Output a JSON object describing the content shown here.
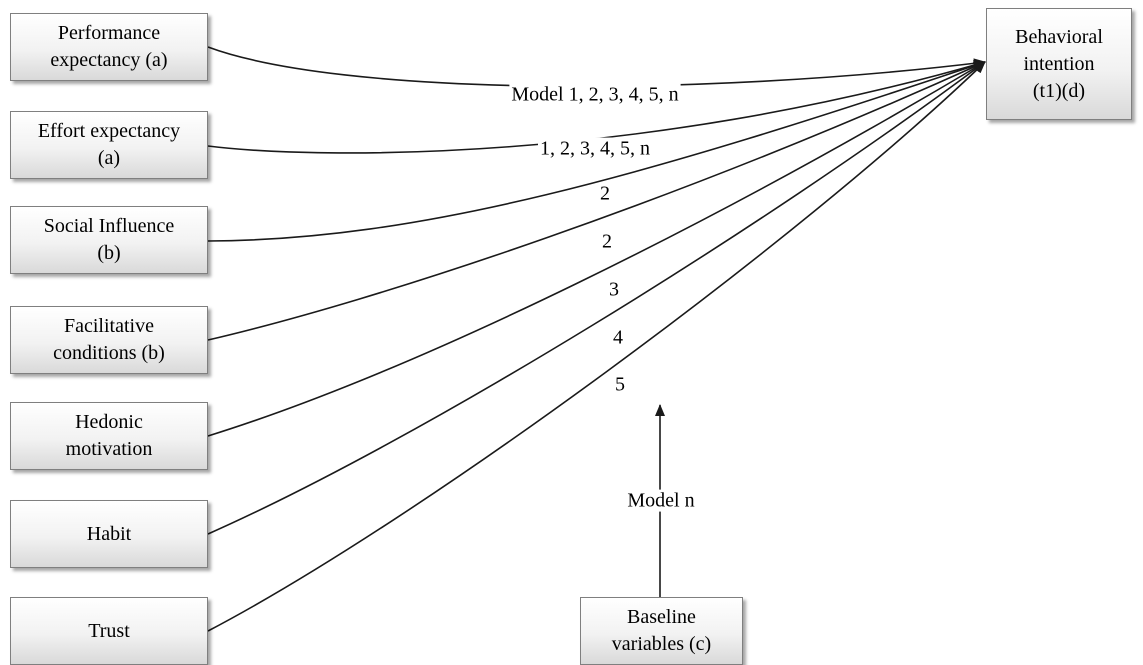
{
  "sources": [
    {
      "id": "pe",
      "label": "Performance\nexpectancy (a)"
    },
    {
      "id": "ee",
      "label": "Effort expectancy\n(a)"
    },
    {
      "id": "si",
      "label": "Social Influence\n(b)"
    },
    {
      "id": "fc",
      "label": "Facilitative\nconditions (b)"
    },
    {
      "id": "hm",
      "label": "Hedonic\nmotivation"
    },
    {
      "id": "habit",
      "label": "Habit"
    },
    {
      "id": "trust",
      "label": "Trust"
    }
  ],
  "outcome": {
    "label": "Behavioral\nintention\n(t1)(d)"
  },
  "baseline": {
    "label": "Baseline\nvariables (c)"
  },
  "path_labels": [
    "Model 1, 2, 3, 4, 5, n",
    "1, 2, 3, 4, 5, n",
    "2",
    "2",
    "3",
    "4",
    "5"
  ],
  "baseline_label": "Model n",
  "colors": {
    "line": "#1a1a1a",
    "border": "#7f7f7f"
  }
}
